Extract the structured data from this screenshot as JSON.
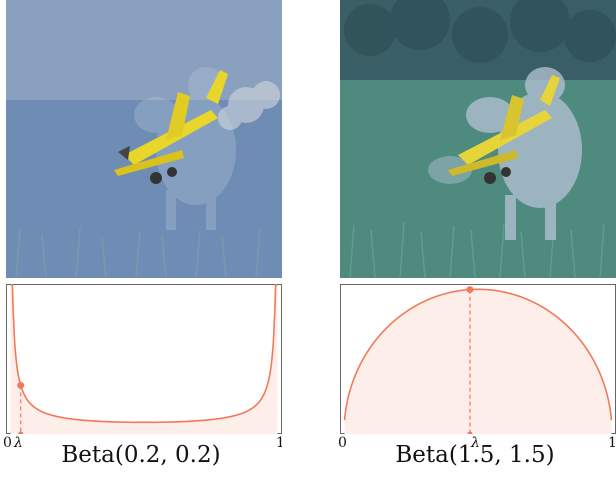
{
  "figure": {
    "panels": [
      {
        "id": "left",
        "caption": "Beta(0.2, 0.2)",
        "tick_zero": "0",
        "tick_lambda": "λ",
        "tick_one": "1",
        "image_content": [
          "airplane",
          "dog"
        ],
        "colors": {
          "tint": "#6a8fb8",
          "curve": "#f07a5a",
          "fill": "#fdeee9"
        }
      },
      {
        "id": "right",
        "caption": "Beta(1.5, 1.5)",
        "tick_zero": "0",
        "tick_lambda": "λ",
        "tick_one": "1",
        "image_content": [
          "airplane",
          "dog"
        ],
        "colors": {
          "tint": "#4d7a8c",
          "curve": "#f07a5a",
          "fill": "#fdeee9"
        }
      }
    ]
  },
  "chart_data": [
    {
      "type": "area",
      "distribution": "Beta",
      "alpha": 0.2,
      "beta": 0.2,
      "xlim": [
        0,
        1
      ],
      "sampled_lambda": 0.04,
      "xticks": [
        "0",
        "λ",
        "1"
      ]
    },
    {
      "type": "area",
      "distribution": "Beta",
      "alpha": 1.5,
      "beta": 1.5,
      "xlim": [
        0,
        1
      ],
      "sampled_lambda": 0.47,
      "xticks": [
        "0",
        "λ",
        "1"
      ]
    }
  ]
}
